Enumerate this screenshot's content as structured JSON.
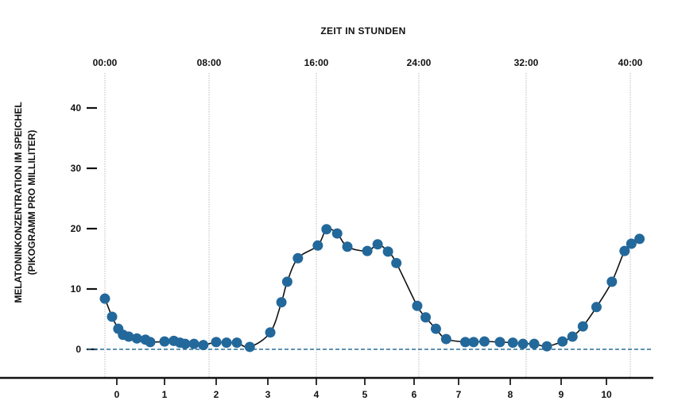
{
  "chart_data": {
    "type": "line",
    "title": "ZEIT IN STUNDEN",
    "xlabel": "ZEIT IN STUNDEN",
    "ylabel": "MELATONINKONZENTRATION IM SPEICHEL",
    "ylabel_line2": "(PIKOGRAMM PRO MILLILITER)",
    "ylim": [
      0,
      40
    ],
    "yticks": [
      0,
      10,
      20,
      30,
      40
    ],
    "top_axis": {
      "ticks": [
        "00:00",
        "08:00",
        "16:00",
        "24:00",
        "32:00",
        "40:00"
      ],
      "hours": [
        0,
        8,
        16,
        24,
        32,
        40
      ]
    },
    "bottom_axis": {
      "ticks": [
        "0",
        "1",
        "2",
        "3",
        "4",
        "5",
        "6",
        "7",
        "8",
        "9",
        "10"
      ]
    },
    "grid": "vertical dotted lines at top-axis ticks",
    "baseline": {
      "value": 0,
      "style": "dashed",
      "color": "#2a6f97"
    },
    "series": [
      {
        "name": "Melatonin",
        "color": "#23689b",
        "points": [
          [
            -0.25,
            8.4
          ],
          [
            -0.1,
            5.4
          ],
          [
            0.03,
            3.4
          ],
          [
            0.13,
            2.4
          ],
          [
            0.25,
            2.1
          ],
          [
            0.42,
            1.8
          ],
          [
            0.6,
            1.6
          ],
          [
            0.7,
            1.2
          ],
          [
            1.0,
            1.3
          ],
          [
            1.18,
            1.4
          ],
          [
            1.3,
            1.1
          ],
          [
            1.4,
            0.9
          ],
          [
            1.57,
            0.9
          ],
          [
            1.75,
            0.7
          ],
          [
            2.0,
            1.2
          ],
          [
            2.2,
            1.1
          ],
          [
            2.4,
            1.1
          ],
          [
            2.65,
            0.4
          ],
          [
            3.05,
            2.8
          ],
          [
            3.28,
            7.8
          ],
          [
            3.4,
            11.2
          ],
          [
            3.62,
            15.1
          ],
          [
            4.03,
            17.2
          ],
          [
            4.21,
            19.9
          ],
          [
            4.43,
            19.2
          ],
          [
            4.64,
            17.0
          ],
          [
            5.05,
            16.3
          ],
          [
            5.26,
            17.4
          ],
          [
            5.47,
            16.2
          ],
          [
            5.64,
            14.3
          ],
          [
            6.07,
            7.2
          ],
          [
            6.26,
            5.3
          ],
          [
            6.49,
            3.4
          ],
          [
            6.72,
            1.7
          ],
          [
            7.13,
            1.2
          ],
          [
            7.29,
            1.2
          ],
          [
            7.5,
            1.3
          ],
          [
            7.8,
            1.2
          ],
          [
            8.05,
            1.1
          ],
          [
            8.25,
            0.9
          ],
          [
            8.47,
            0.9
          ],
          [
            8.72,
            0.5
          ],
          [
            9.03,
            1.3
          ],
          [
            9.25,
            2.1
          ],
          [
            9.48,
            3.8
          ],
          [
            9.78,
            7.0
          ],
          [
            10.12,
            11.2
          ],
          [
            10.4,
            16.3
          ],
          [
            10.55,
            17.5
          ],
          [
            10.73,
            18.3
          ]
        ]
      }
    ]
  }
}
